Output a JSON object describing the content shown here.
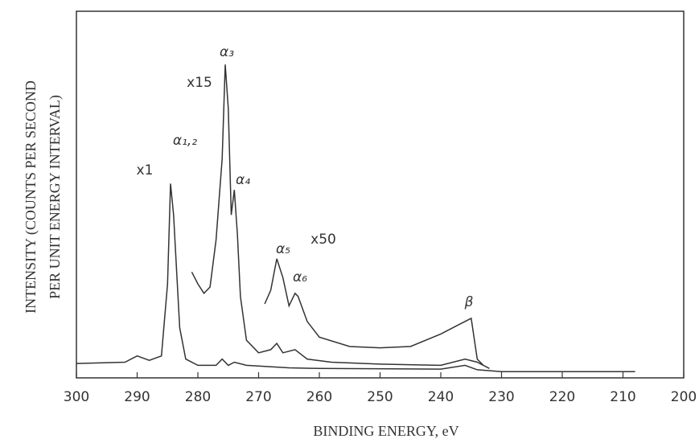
{
  "chart_data": {
    "type": "line",
    "xlabel": "BINDING ENERGY, eV",
    "ylabel": [
      "INTENSITY (COUNTS PER SECOND",
      "PER UNIT ENERGY INTERVAL)"
    ],
    "xlim": [
      300,
      200
    ],
    "ylim": [
      0,
      5.85
    ],
    "xticks": [
      300,
      290,
      280,
      270,
      260,
      250,
      240,
      230,
      220,
      210,
      200
    ],
    "series": [
      {
        "name": "x1",
        "color": "#333333",
        "x": [
          300,
          292,
          290,
          288,
          286,
          285,
          284.5,
          284,
          283,
          282,
          280,
          277,
          276,
          275,
          274,
          272,
          265,
          260,
          240,
          236,
          234,
          230,
          220,
          208
        ],
        "values": [
          0.23,
          0.25,
          0.35,
          0.28,
          0.35,
          1.5,
          3.1,
          2.6,
          0.8,
          0.3,
          0.2,
          0.2,
          0.3,
          0.2,
          0.25,
          0.2,
          0.16,
          0.15,
          0.14,
          0.2,
          0.13,
          0.1,
          0.1,
          0.1
        ]
      },
      {
        "name": "x15",
        "color": "#333333",
        "x": [
          281,
          280,
          279,
          278,
          277,
          276,
          275.5,
          275,
          274.5,
          274,
          273.5,
          273,
          272,
          270,
          268,
          267,
          266,
          264,
          262,
          258,
          250,
          240,
          236,
          234,
          232
        ],
        "values": [
          1.69,
          1.5,
          1.35,
          1.45,
          2.2,
          3.5,
          5.0,
          4.3,
          2.6,
          3.0,
          2.3,
          1.3,
          0.6,
          0.4,
          0.45,
          0.55,
          0.4,
          0.45,
          0.3,
          0.25,
          0.22,
          0.2,
          0.3,
          0.25,
          0.15
        ]
      },
      {
        "name": "x50",
        "color": "#333333",
        "x": [
          269,
          268,
          267,
          266,
          265,
          264,
          263.5,
          262,
          260,
          255,
          250,
          245,
          240,
          237,
          235,
          234,
          233
        ],
        "values": [
          1.18,
          1.4,
          1.9,
          1.6,
          1.15,
          1.35,
          1.3,
          0.9,
          0.65,
          0.5,
          0.48,
          0.5,
          0.7,
          0.85,
          0.95,
          0.3,
          0.2
        ]
      }
    ],
    "annotations": [
      "α₃",
      "α₁,₂",
      "α₄",
      "α₅",
      "α₆",
      "β"
    ]
  }
}
